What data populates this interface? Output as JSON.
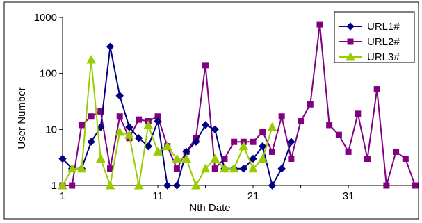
{
  "chart_data": {
    "type": "line",
    "title": "",
    "xlabel": "Nth Date",
    "ylabel": "User Number",
    "y_scale": "log",
    "ylim": [
      1,
      1000
    ],
    "xlim": [
      1,
      38
    ],
    "y_ticks": [
      "1",
      "10",
      "100",
      "1000"
    ],
    "x_ticks": [
      "1",
      "11",
      "21",
      "31"
    ],
    "grid": "off",
    "legend_position": "top-right",
    "series": [
      {
        "name": "URL1#",
        "color": "#000080",
        "marker": "diamond",
        "x": [
          1,
          2,
          3,
          4,
          5,
          6,
          7,
          8,
          9,
          10,
          11,
          12,
          13,
          14,
          15,
          16,
          17,
          18,
          19,
          20,
          21,
          22,
          23,
          24,
          25
        ],
        "values": [
          3,
          2,
          2,
          6,
          11,
          300,
          40,
          11,
          7,
          5,
          14,
          1,
          1,
          4,
          6,
          12,
          10,
          2,
          2,
          2,
          3,
          5,
          1,
          2,
          6
        ]
      },
      {
        "name": "URL2#",
        "color": "#800080",
        "marker": "square",
        "x": [
          1,
          2,
          3,
          4,
          5,
          6,
          7,
          8,
          9,
          10,
          11,
          12,
          13,
          14,
          15,
          16,
          17,
          18,
          19,
          20,
          21,
          22,
          23,
          24,
          25,
          26,
          27,
          28,
          29,
          30,
          31,
          32,
          33,
          34,
          35,
          36,
          37,
          38
        ],
        "values": [
          1,
          1,
          12,
          17,
          21,
          2,
          17,
          7,
          15,
          14,
          17,
          5,
          2,
          4,
          7,
          140,
          2,
          3,
          6,
          6,
          6,
          9,
          4,
          17,
          3,
          14,
          28,
          750,
          12,
          8,
          4,
          19,
          3,
          52,
          1,
          4,
          3,
          1
        ]
      },
      {
        "name": "URL3#",
        "color": "#99CC00",
        "marker": "triangle",
        "x": [
          1,
          2,
          3,
          4,
          5,
          6,
          7,
          8,
          9,
          10,
          11,
          12,
          13,
          14,
          15,
          16,
          17,
          18,
          19,
          20,
          21,
          22,
          23
        ],
        "values": [
          1,
          2,
          2,
          175,
          3,
          1,
          9,
          8,
          1,
          12,
          4,
          5,
          3,
          3,
          1,
          2,
          3,
          2,
          2,
          5,
          2,
          3,
          11
        ]
      }
    ]
  }
}
